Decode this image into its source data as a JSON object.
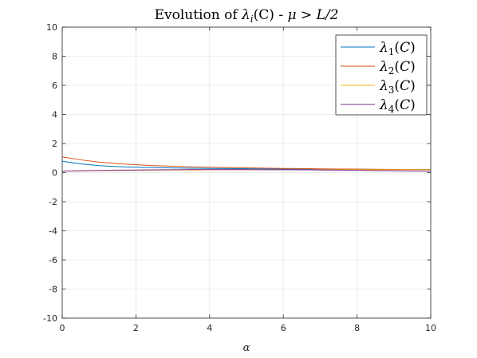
{
  "chart_data": {
    "type": "line",
    "title": "Evolution of λ_i(C) - μ > L/2",
    "title_display": {
      "a": "Evolution of ",
      "b": "λ",
      "c": "i",
      "d": "(C) - ",
      "e": "μ > L/2"
    },
    "xlabel": "α",
    "ylabel": "",
    "xlim": [
      0,
      10
    ],
    "ylim": [
      -10,
      10
    ],
    "xticks": [
      0,
      2,
      4,
      6,
      8,
      10
    ],
    "yticks": [
      -10,
      -8,
      -6,
      -4,
      -2,
      0,
      2,
      4,
      6,
      8,
      10
    ],
    "xtick_labels": [
      "0",
      "2",
      "4",
      "6",
      "8",
      "10"
    ],
    "ytick_labels": [
      "-10",
      "-8",
      "-6",
      "-4",
      "-2",
      "0",
      "2",
      "4",
      "6",
      "8",
      "10"
    ],
    "grid": true,
    "legend_position": "top-right",
    "x": [
      0,
      0.5,
      1,
      1.5,
      2,
      2.5,
      3,
      3.5,
      4,
      4.5,
      5,
      5.5,
      6,
      6.5,
      7,
      7.5,
      8,
      8.5,
      9,
      9.5,
      10
    ],
    "series": [
      {
        "name": "λ1(C)",
        "index": "1",
        "color": "#0072BD",
        "values": [
          0.78,
          0.6,
          0.48,
          0.41,
          0.37,
          0.34,
          0.32,
          0.3,
          0.29,
          0.28,
          0.27,
          0.26,
          0.25,
          0.24,
          0.24,
          0.23,
          0.23,
          0.22,
          0.22,
          0.21,
          0.21
        ]
      },
      {
        "name": "λ2(C)",
        "index": "2",
        "color": "#D95319",
        "values": [
          1.08,
          0.88,
          0.72,
          0.62,
          0.54,
          0.48,
          0.44,
          0.4,
          0.37,
          0.35,
          0.33,
          0.31,
          0.29,
          0.28,
          0.26,
          0.25,
          0.24,
          0.23,
          0.22,
          0.22,
          0.21
        ]
      },
      {
        "name": "λ3(C)",
        "index": "3",
        "color": "#EDB120",
        "values": [
          0.1,
          0.12,
          0.14,
          0.15,
          0.16,
          0.17,
          0.18,
          0.18,
          0.19,
          0.19,
          0.19,
          0.19,
          0.2,
          0.2,
          0.2,
          0.2,
          0.2,
          0.2,
          0.2,
          0.2,
          0.2
        ]
      },
      {
        "name": "λ4(C)",
        "index": "4",
        "color": "#7E2F8E",
        "values": [
          0.1,
          0.13,
          0.15,
          0.17,
          0.18,
          0.19,
          0.2,
          0.21,
          0.21,
          0.21,
          0.21,
          0.2,
          0.2,
          0.19,
          0.18,
          0.17,
          0.16,
          0.14,
          0.13,
          0.11,
          0.1
        ]
      }
    ]
  }
}
